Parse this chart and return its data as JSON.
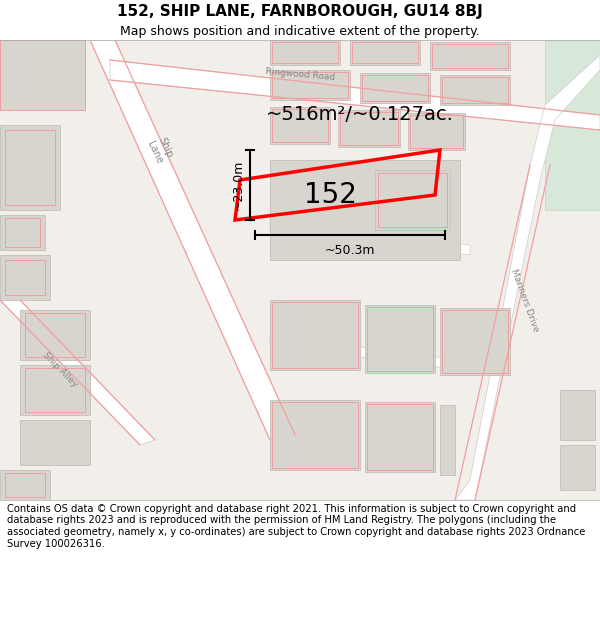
{
  "title": "152, SHIP LANE, FARNBOROUGH, GU14 8BJ",
  "subtitle": "Map shows position and indicative extent of the property.",
  "footer": "Contains OS data © Crown copyright and database right 2021. This information is subject to Crown copyright and database rights 2023 and is reproduced with the permission of HM Land Registry. The polygons (including the associated geometry, namely x, y co-ordinates) are subject to Crown copyright and database rights 2023 Ordnance Survey 100026316.",
  "area_label": "~516m²/~0.127ac.",
  "property_number": "152",
  "dim_width": "~50.3m",
  "dim_height": "~23.0m",
  "map_bg": "#f2eeea",
  "road_fill": "#ffffff",
  "block_fill": "#d8d4ce",
  "block_ec": "#c8c4be",
  "red_line": "#f0a0a0",
  "prop_red": "#ff0000",
  "green_area": "#d8e8d8",
  "title_fontsize": 11,
  "subtitle_fontsize": 9,
  "footer_fontsize": 7.2,
  "label_color": "#888888"
}
